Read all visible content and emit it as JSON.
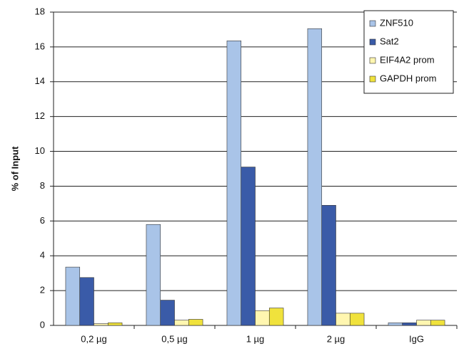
{
  "chart_data": {
    "type": "bar",
    "y_label": "% of Input",
    "categories": [
      "0,2 µg",
      "0,5 µg",
      "1 µg",
      "2 µg",
      "IgG"
    ],
    "series": [
      {
        "name": "ZNF510",
        "color": "#a9c4e8",
        "values": [
          3.35,
          5.8,
          16.35,
          17.05,
          0.15
        ]
      },
      {
        "name": "Sat2",
        "color": "#3a5ba8",
        "values": [
          2.75,
          1.45,
          9.1,
          6.9,
          0.15
        ]
      },
      {
        "name": "EIF4A2 prom",
        "color": "#fff6b0",
        "values": [
          0.1,
          0.3,
          0.85,
          0.7,
          0.3
        ]
      },
      {
        "name": "GAPDH prom",
        "color": "#f0e23c",
        "values": [
          0.15,
          0.35,
          1.0,
          0.7,
          0.3
        ]
      }
    ],
    "ylim": [
      0,
      18
    ],
    "yticks": [
      0,
      2,
      4,
      6,
      8,
      10,
      12,
      14,
      16,
      18
    ],
    "grid": true,
    "legend": "top-right"
  }
}
